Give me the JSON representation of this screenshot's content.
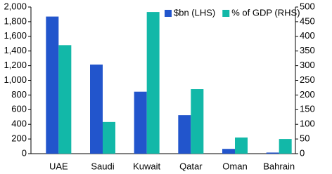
{
  "chart_data": {
    "type": "bar",
    "categories": [
      "UAE",
      "Saudi",
      "Kuwait",
      "Qatar",
      "Oman",
      "Bahrain"
    ],
    "series": [
      {
        "name": "$bn (LHS)",
        "color": "#2255cc",
        "values": [
          1870,
          1215,
          845,
          525,
          65,
          15
        ]
      },
      {
        "name": "% of GDP (RHS)",
        "color": "#12b8a8",
        "axis": "y2",
        "values": [
          370,
          108,
          483,
          220,
          55,
          50
        ]
      }
    ],
    "ylim": [
      0,
      2000
    ],
    "yticks": [
      0,
      200,
      400,
      600,
      800,
      {
        "value": 1000,
        "label": "1,000"
      },
      {
        "value": 1200,
        "label": "1,200"
      },
      {
        "value": 1400,
        "label": "1,400"
      },
      {
        "value": 1600,
        "label": "1,600"
      },
      {
        "value": 1800,
        "label": "1,800"
      },
      {
        "value": 2000,
        "label": "2,000"
      }
    ],
    "y2lim": [
      0,
      500
    ],
    "y2ticks": [
      0,
      50,
      100,
      150,
      200,
      250,
      300,
      350,
      400,
      450,
      500
    ],
    "grid": false,
    "legend": "upper right"
  }
}
